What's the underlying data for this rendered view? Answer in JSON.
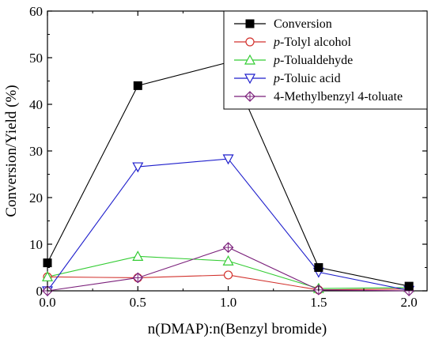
{
  "chart_data": {
    "type": "line",
    "xlabel": "n(DMAP):n(Benzyl bromide)",
    "ylabel": "Conversion/Yield (%)",
    "xlim": [
      0.0,
      2.1
    ],
    "ylim": [
      0,
      60
    ],
    "xticks": [
      0.0,
      0.5,
      1.0,
      1.5,
      2.0
    ],
    "xtick_labels": [
      "0.0",
      "0.5",
      "1.0",
      "1.5",
      "2.0"
    ],
    "yticks": [
      0,
      10,
      20,
      30,
      40,
      50,
      60
    ],
    "ytick_labels": [
      "0",
      "10",
      "20",
      "30",
      "40",
      "50",
      "60"
    ],
    "grid": false,
    "legend_position": "top-right",
    "x": [
      0.0,
      0.5,
      1.0,
      1.5,
      2.0
    ],
    "series": [
      {
        "name_prefix": "",
        "name": "Conversion",
        "color": "#000000",
        "marker": "square-filled",
        "values": [
          6.0,
          44.0,
          49.0,
          5.0,
          1.0
        ]
      },
      {
        "name_prefix": "p",
        "name": "-Tolyl alcohol",
        "color": "#d2322d",
        "marker": "circle-open",
        "values": [
          3.0,
          2.8,
          3.4,
          0.2,
          0.4
        ]
      },
      {
        "name_prefix": "p",
        "name": "-Tolualdehyde",
        "color": "#33cc33",
        "marker": "triangle-up-open",
        "values": [
          3.0,
          7.4,
          6.4,
          0.5,
          0.7
        ]
      },
      {
        "name_prefix": "p",
        "name": "-Toluic acid",
        "color": "#1f1fcc",
        "marker": "triangle-down-open",
        "values": [
          0.0,
          26.6,
          28.3,
          4.0,
          0.1
        ]
      },
      {
        "name_prefix": "",
        "name": "4-Methylbenzyl 4-toluate",
        "color": "#7a1f7a",
        "marker": "diamond-cross",
        "values": [
          0.0,
          2.8,
          9.3,
          0.2,
          0.0
        ]
      }
    ]
  }
}
